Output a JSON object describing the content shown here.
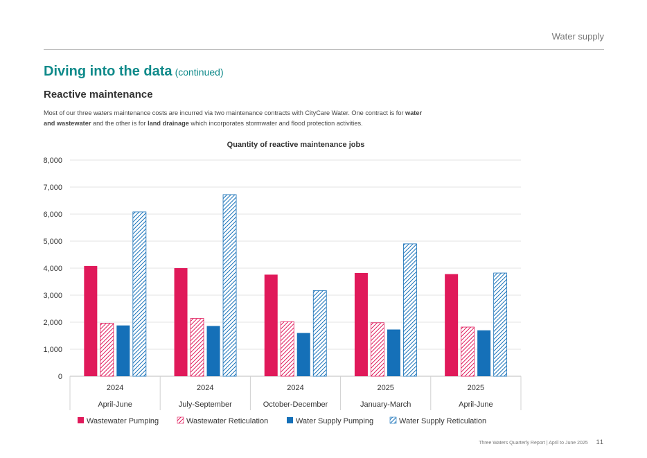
{
  "header": {
    "section": "Water supply"
  },
  "title": {
    "main": "Diving into the data",
    "suffix": "(continued)"
  },
  "section_heading": "Reactive maintenance",
  "intro": {
    "part1": "Most of our three waters maintenance costs are incurred via two maintenance contracts with CityCare Water. One contract is for ",
    "bold1": "water and wastewater",
    "part2": " and the other is for ",
    "bold2": "land drainage",
    "part3": " which incorporates stormwater and flood protection activities."
  },
  "chart_data": {
    "type": "bar",
    "title": "Quantity of reactive maintenance jobs",
    "xlabel": "",
    "ylabel": "",
    "ylim": [
      0,
      8000
    ],
    "yticks": [
      "0",
      "1,000",
      "2,000",
      "3,000",
      "4,000",
      "5,000",
      "6,000",
      "7,000",
      "8,000"
    ],
    "grid": true,
    "legend_position": "bottom",
    "categories": [
      {
        "year": "2024",
        "period": "April-June"
      },
      {
        "year": "2024",
        "period": "July-September"
      },
      {
        "year": "2024",
        "period": "October-December"
      },
      {
        "year": "2025",
        "period": "January-March"
      },
      {
        "year": "2025",
        "period": "April-June"
      }
    ],
    "series": [
      {
        "name": "Wastewater Pumping",
        "color": "#e0195a",
        "pattern": "solid",
        "values": [
          4080,
          4000,
          3760,
          3820,
          3780
        ]
      },
      {
        "name": "Wastewater Reticulation",
        "color": "#e0195a",
        "pattern": "hatched",
        "values": [
          1960,
          2140,
          2020,
          1980,
          1820
        ]
      },
      {
        "name": "Water Supply Pumping",
        "color": "#1570b8",
        "pattern": "solid",
        "values": [
          1880,
          1860,
          1600,
          1730,
          1700
        ]
      },
      {
        "name": "Water Supply Reticulation",
        "color": "#1570b8",
        "pattern": "hatched",
        "values": [
          6080,
          6720,
          3170,
          4900,
          3820
        ]
      }
    ]
  },
  "footer": {
    "report": "Three Waters Quarterly Report | April to June 2025",
    "page": "11"
  }
}
